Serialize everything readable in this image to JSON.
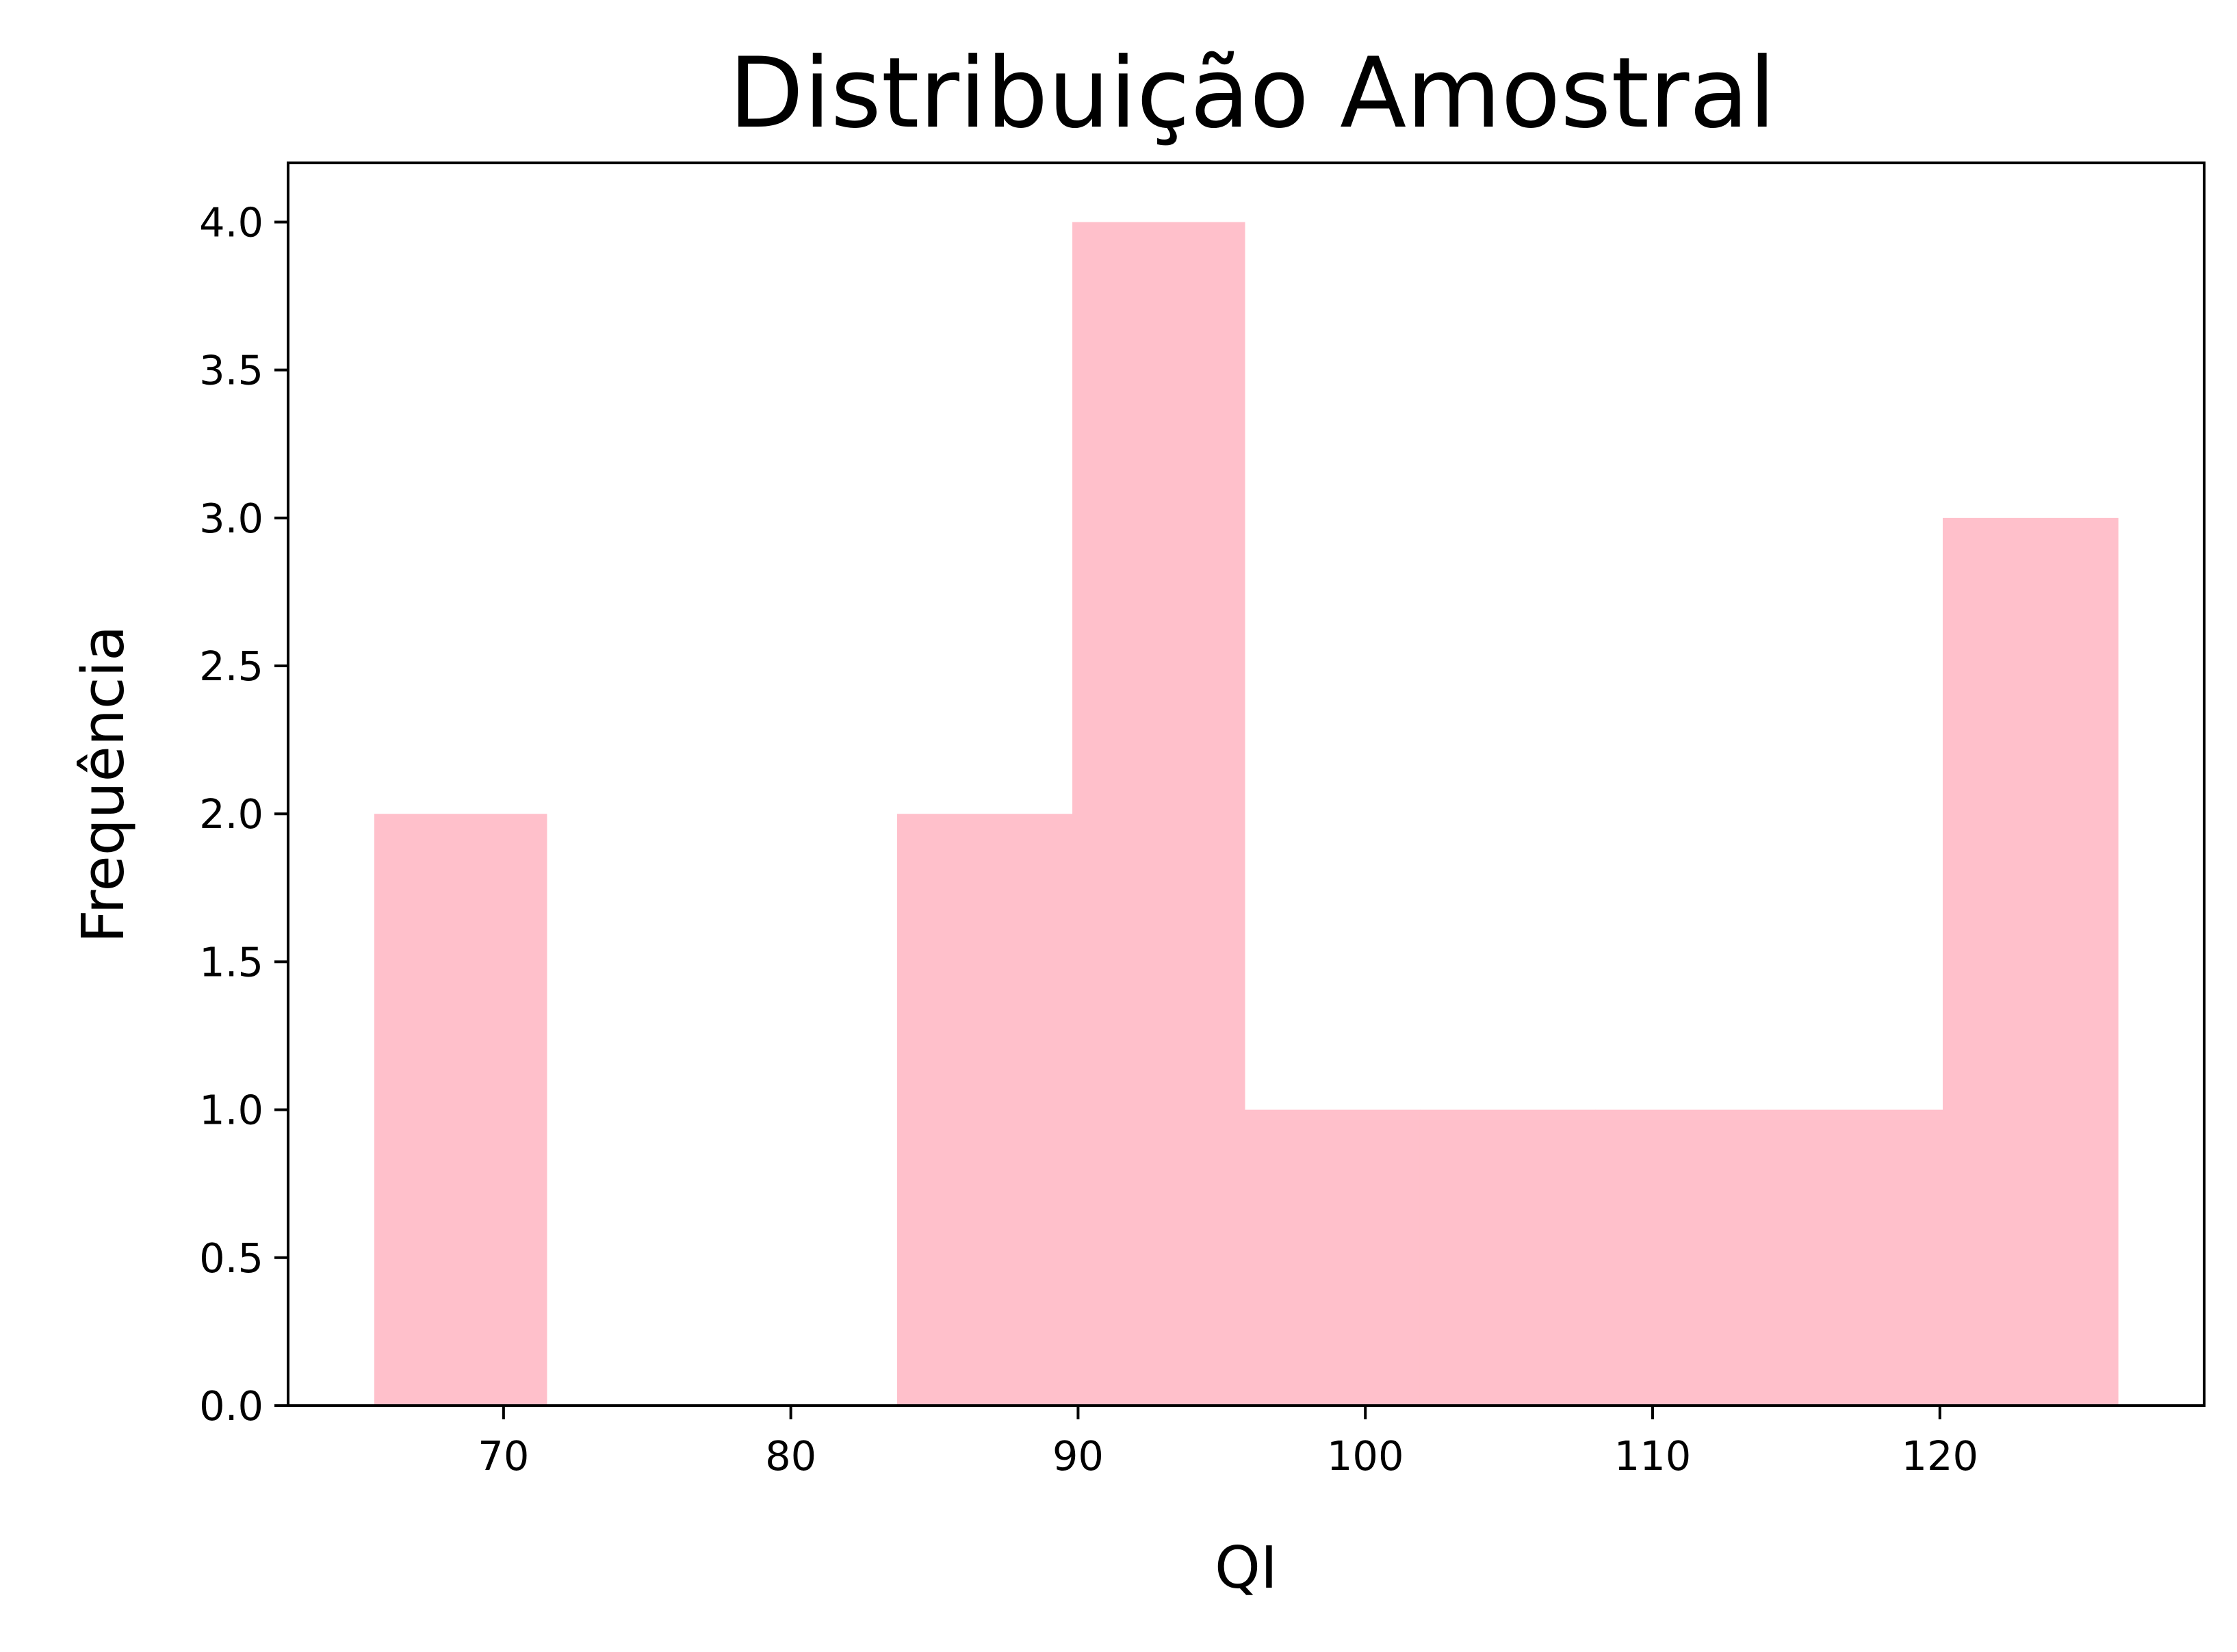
{
  "chart_data": {
    "type": "bar",
    "title": "Distribuição Amostral",
    "xlabel": "QI",
    "ylabel": "Frequência",
    "bins": [
      {
        "x0": 65.5,
        "x1": 71.5,
        "count": 2
      },
      {
        "x0": 71.5,
        "x1": 77.6,
        "count": 0
      },
      {
        "x0": 77.6,
        "x1": 83.7,
        "count": 0
      },
      {
        "x0": 83.7,
        "x1": 89.8,
        "count": 2
      },
      {
        "x0": 89.8,
        "x1": 95.8,
        "count": 4
      },
      {
        "x0": 95.8,
        "x1": 101.9,
        "count": 1
      },
      {
        "x0": 101.9,
        "x1": 108.0,
        "count": 1
      },
      {
        "x0": 108.0,
        "x1": 114.0,
        "count": 1
      },
      {
        "x0": 114.0,
        "x1": 120.1,
        "count": 1
      },
      {
        "x0": 120.1,
        "x1": 126.2,
        "count": 3
      }
    ],
    "xlim": [
      62.5,
      129.2
    ],
    "ylim": [
      0,
      4.2
    ],
    "xticks": [
      70,
      80,
      90,
      100,
      110,
      120
    ],
    "xtick_labels": [
      "70",
      "80",
      "90",
      "100",
      "110",
      "120"
    ],
    "yticks": [
      0.0,
      0.5,
      1.0,
      1.5,
      2.0,
      2.5,
      3.0,
      3.5,
      4.0
    ],
    "ytick_labels": [
      "0.0",
      "0.5",
      "1.0",
      "1.5",
      "2.0",
      "2.5",
      "3.0",
      "3.5",
      "4.0"
    ],
    "bar_color": "#ffc0cb",
    "grid": false,
    "legend": "none"
  }
}
